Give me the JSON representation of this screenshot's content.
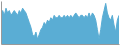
{
  "chart_data": {
    "type": "area",
    "values": [
      5,
      6,
      4,
      7,
      5,
      6,
      4,
      5,
      6,
      5,
      4,
      6,
      5,
      7,
      6,
      5,
      3,
      1,
      -1,
      -4,
      -5,
      -3,
      -6,
      -4,
      -2,
      -1,
      1,
      0,
      2,
      1,
      3,
      2,
      4,
      3,
      3,
      4,
      3,
      3,
      4,
      3,
      4,
      3,
      4,
      3,
      4,
      5,
      4,
      3,
      4,
      4,
      3,
      4,
      3,
      5,
      3,
      5,
      4,
      2,
      -2,
      -6,
      -2,
      3,
      6,
      9,
      5,
      3,
      2,
      4,
      0,
      -3,
      2,
      4
    ],
    "color": "#5aadd4",
    "xlim": [
      0,
      71
    ],
    "ylim": [
      -8,
      10
    ],
    "tick_labels": false,
    "grid": false
  }
}
